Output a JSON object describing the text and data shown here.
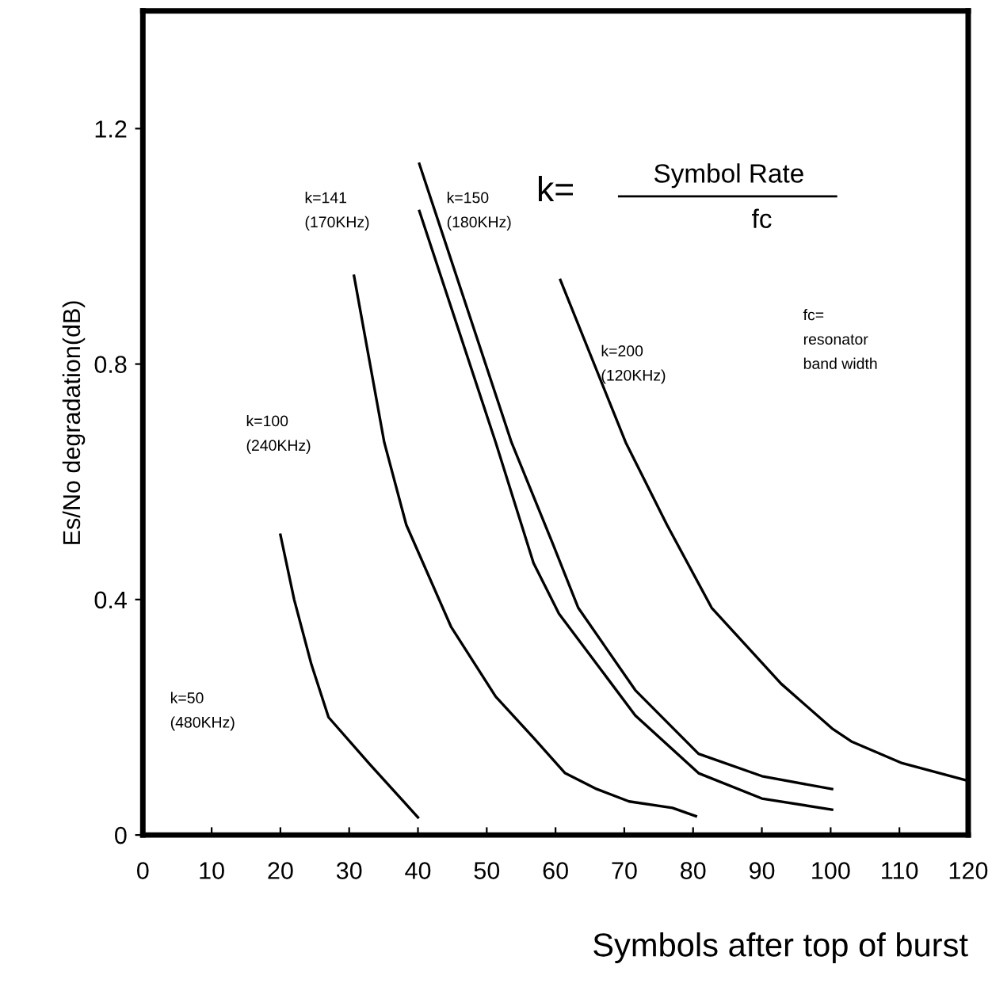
{
  "chart_data": {
    "type": "line",
    "xlabel": "Symbols after top of burst",
    "ylabel": "Es/No degradation(dB)",
    "xlim": [
      0,
      120
    ],
    "xticks": [
      0,
      10,
      20,
      30,
      40,
      50,
      60,
      70,
      80,
      90,
      100,
      110,
      120
    ],
    "ylim": [
      0,
      1.4
    ],
    "yticks": [
      0,
      0.4,
      0.8,
      1.2
    ],
    "grid": false,
    "marker": "none",
    "line_style": "solid",
    "series": [
      {
        "color": "#000000",
        "x": [
          20,
          22,
          24.5,
          27,
          33,
          40
        ],
        "values": [
          0.51,
          0.4,
          0.29,
          0.2,
          0.12,
          0.03
        ]
      },
      {
        "color": "#000000",
        "x": [
          30.7,
          35.1,
          38.3,
          44.8,
          51.3,
          56.8,
          61.4,
          66,
          70.7,
          77,
          80.4
        ],
        "values": [
          0.95,
          0.667,
          0.527,
          0.354,
          0.235,
          0.165,
          0.105,
          0.078,
          0.057,
          0.046,
          0.032
        ]
      },
      {
        "color": "#000000",
        "x": [
          40.2,
          53.6,
          59.6,
          63.3,
          71.6,
          80.8,
          90,
          100.2
        ],
        "values": [
          1.14,
          0.667,
          0.495,
          0.386,
          0.246,
          0.138,
          0.1,
          0.078
        ]
      },
      {
        "color": "#000000",
        "x": [
          40.2,
          51.3,
          56.8,
          60.5,
          71.6,
          80.8,
          90,
          100.2
        ],
        "values": [
          1.06,
          0.667,
          0.462,
          0.376,
          0.203,
          0.105,
          0.062,
          0.043
        ]
      },
      {
        "color": "#000000",
        "x": [
          60.7,
          70.2,
          76.2,
          82.7,
          92.8,
          100.2,
          103,
          110.4,
          120
        ],
        "values": [
          0.943,
          0.667,
          0.527,
          0.386,
          0.257,
          0.181,
          0.159,
          0.122,
          0.092
        ]
      }
    ],
    "annotations": [
      "k=50\n(480KHz)",
      "k=100\n(240KHz)",
      "k=141\n(170KHz)",
      "k=150\n(180KHz)",
      "k=200\n(120KHz)",
      "k=",
      "Symbol Rate",
      "fc",
      "fc=\nresonator\nband width"
    ]
  }
}
